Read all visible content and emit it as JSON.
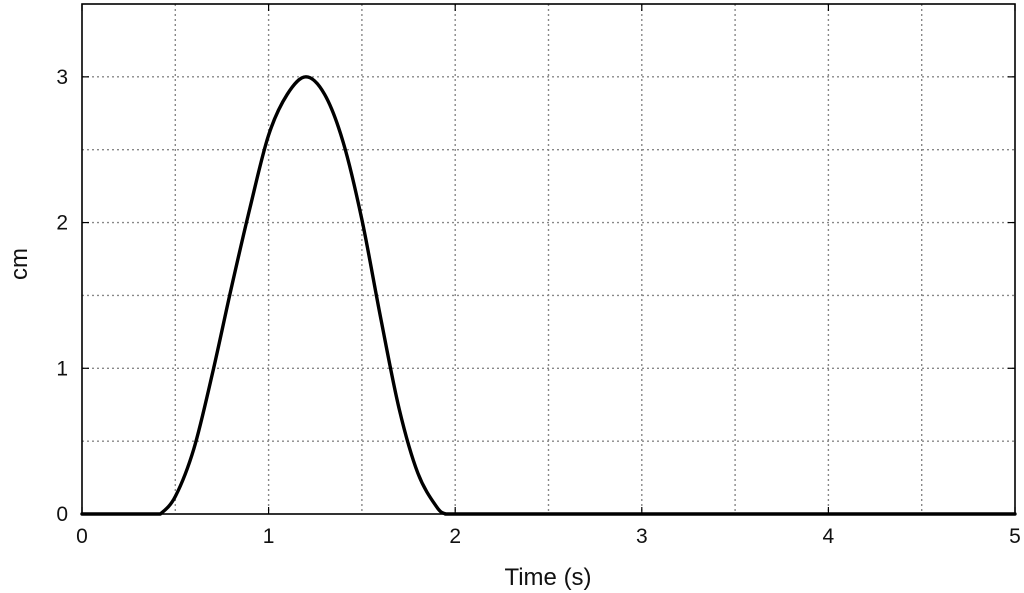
{
  "chart_data": {
    "type": "line",
    "title": "",
    "xlabel": "Time (s)",
    "ylabel": "cm",
    "xlim": [
      0,
      5
    ],
    "ylim": [
      0,
      3.5
    ],
    "xticks": [
      0,
      1,
      2,
      3,
      4,
      5
    ],
    "xtick_labels": [
      "0",
      "1",
      "2",
      "3",
      "4",
      "5"
    ],
    "yticks": [
      0,
      1,
      2,
      3
    ],
    "ytick_labels": [
      "0",
      "1",
      "2",
      "3"
    ],
    "x_gridlines": [
      0.5,
      1,
      1.5,
      2,
      2.5,
      3,
      3.5,
      4,
      4.5
    ],
    "y_gridlines": [
      0.5,
      1,
      1.5,
      2,
      2.5,
      3
    ],
    "grid": true,
    "grid_style": "dotted",
    "line_color": "#000000",
    "grid_color": "#888888",
    "series": [
      {
        "x": [
          0,
          0.2,
          0.4,
          0.42,
          0.5,
          0.6,
          0.7,
          0.8,
          0.9,
          1.0,
          1.1,
          1.2,
          1.3,
          1.4,
          1.5,
          1.6,
          1.7,
          1.8,
          1.9,
          1.95,
          2.0,
          2.5,
          3.0,
          3.5,
          4.0,
          4.5,
          5.0
        ],
        "y": [
          0,
          0,
          0,
          0,
          0.12,
          0.45,
          0.97,
          1.55,
          2.1,
          2.6,
          2.88,
          3.0,
          2.88,
          2.55,
          2.02,
          1.35,
          0.72,
          0.28,
          0.05,
          0,
          0,
          0,
          0,
          0,
          0,
          0,
          0
        ]
      }
    ]
  }
}
